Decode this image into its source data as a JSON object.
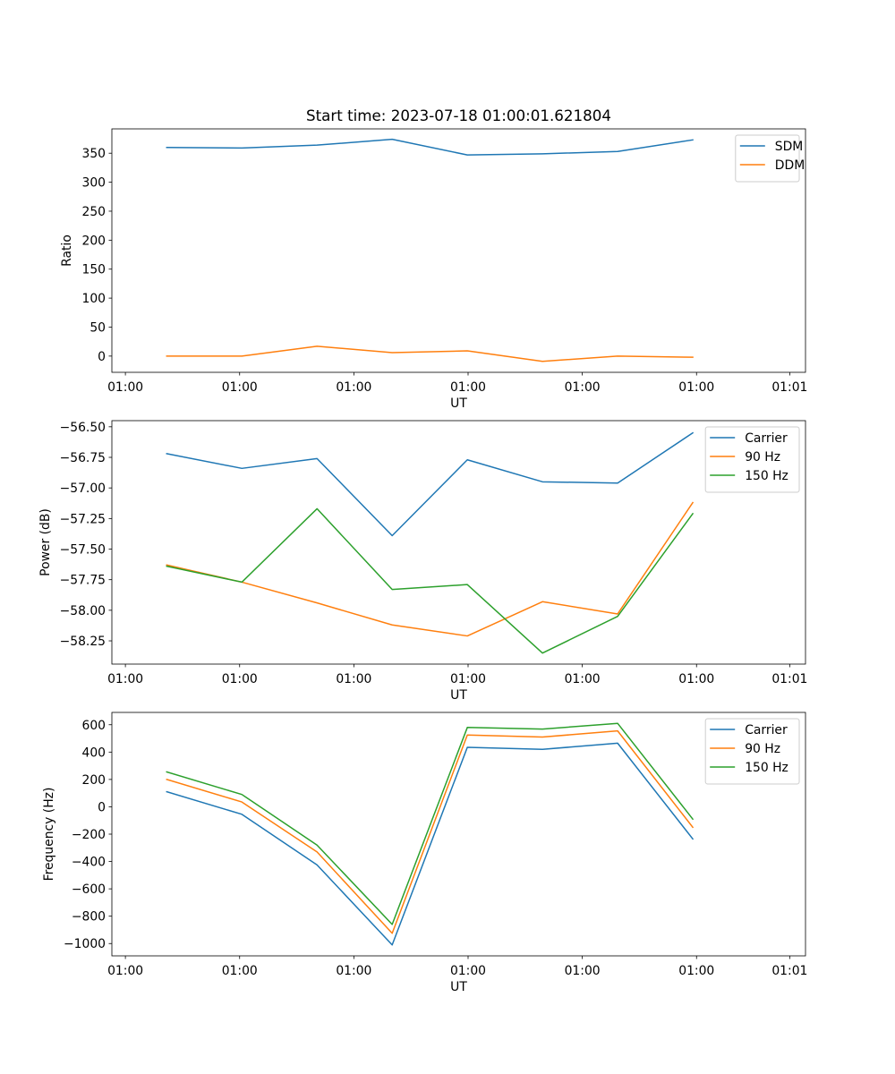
{
  "chart_data": [
    {
      "type": "line",
      "title": "Start time: 2023-07-18 01:00:01.621804",
      "xlabel": "UT",
      "ylabel": "Ratio",
      "xticks": [
        "01:00",
        "01:00",
        "01:00",
        "01:00",
        "01:00",
        "01:00",
        "01:01"
      ],
      "x": [
        1,
        2,
        3,
        4,
        5,
        6,
        7,
        8
      ],
      "xlim": [
        0.27,
        9.5
      ],
      "ylim": [
        -28,
        392
      ],
      "yticks": [
        0,
        50,
        100,
        150,
        200,
        250,
        300,
        350
      ],
      "legend_position": "top-right",
      "series": [
        {
          "name": "SDM",
          "color": "#1f77b4",
          "values": [
            360,
            359,
            364,
            374,
            347,
            349,
            353,
            373
          ]
        },
        {
          "name": "DDM",
          "color": "#ff7f0e",
          "values": [
            0,
            0,
            17,
            6,
            9,
            -9,
            0,
            -2
          ]
        }
      ]
    },
    {
      "type": "line",
      "title": "",
      "xlabel": "UT",
      "ylabel": "Power (dB)",
      "xticks": [
        "01:00",
        "01:00",
        "01:00",
        "01:00",
        "01:00",
        "01:00",
        "01:01"
      ],
      "x": [
        1,
        2,
        3,
        4,
        5,
        6,
        7,
        8
      ],
      "xlim": [
        0.27,
        9.5
      ],
      "ylim": [
        -58.44,
        -56.45
      ],
      "yticks": [
        -58.25,
        -58.0,
        -57.75,
        -57.5,
        -57.25,
        -57.0,
        -56.75,
        -56.5
      ],
      "yticklabels": [
        "−58.25",
        "−58.00",
        "−57.75",
        "−57.50",
        "−57.25",
        "−57.00",
        "−56.75",
        "−56.50"
      ],
      "legend_position": "top-right",
      "series": [
        {
          "name": "Carrier",
          "color": "#1f77b4",
          "values": [
            -56.72,
            -56.84,
            -56.76,
            -57.39,
            -56.77,
            -56.95,
            -56.96,
            -56.55
          ]
        },
        {
          "name": "90 Hz",
          "color": "#ff7f0e",
          "values": [
            -57.63,
            -57.77,
            -57.94,
            -58.12,
            -58.21,
            -57.93,
            -58.03,
            -57.12
          ]
        },
        {
          "name": "150 Hz",
          "color": "#2ca02c",
          "values": [
            -57.64,
            -57.77,
            -57.17,
            -57.83,
            -57.79,
            -58.35,
            -58.05,
            -57.21
          ]
        }
      ]
    },
    {
      "type": "line",
      "title": "",
      "xlabel": "UT",
      "ylabel": "Frequency (Hz)",
      "xticks": [
        "01:00",
        "01:00",
        "01:00",
        "01:00",
        "01:00",
        "01:00",
        "01:01"
      ],
      "x": [
        1,
        2,
        3,
        4,
        5,
        6,
        7,
        8
      ],
      "xlim": [
        0.27,
        9.5
      ],
      "ylim": [
        -1090,
        690
      ],
      "yticks": [
        -1000,
        -800,
        -600,
        -400,
        -200,
        0,
        200,
        400,
        600
      ],
      "yticklabels": [
        "−1000",
        "−800",
        "−600",
        "−400",
        "−200",
        "0",
        "200",
        "400",
        "600"
      ],
      "legend_position": "top-right",
      "series": [
        {
          "name": "Carrier",
          "color": "#1f77b4",
          "values": [
            110,
            -55,
            -425,
            -1010,
            435,
            420,
            465,
            -235
          ]
        },
        {
          "name": "90 Hz",
          "color": "#ff7f0e",
          "values": [
            200,
            35,
            -330,
            -925,
            525,
            510,
            555,
            -150
          ]
        },
        {
          "name": "150 Hz",
          "color": "#2ca02c",
          "values": [
            255,
            90,
            -280,
            -860,
            580,
            568,
            610,
            -90
          ]
        }
      ]
    }
  ]
}
